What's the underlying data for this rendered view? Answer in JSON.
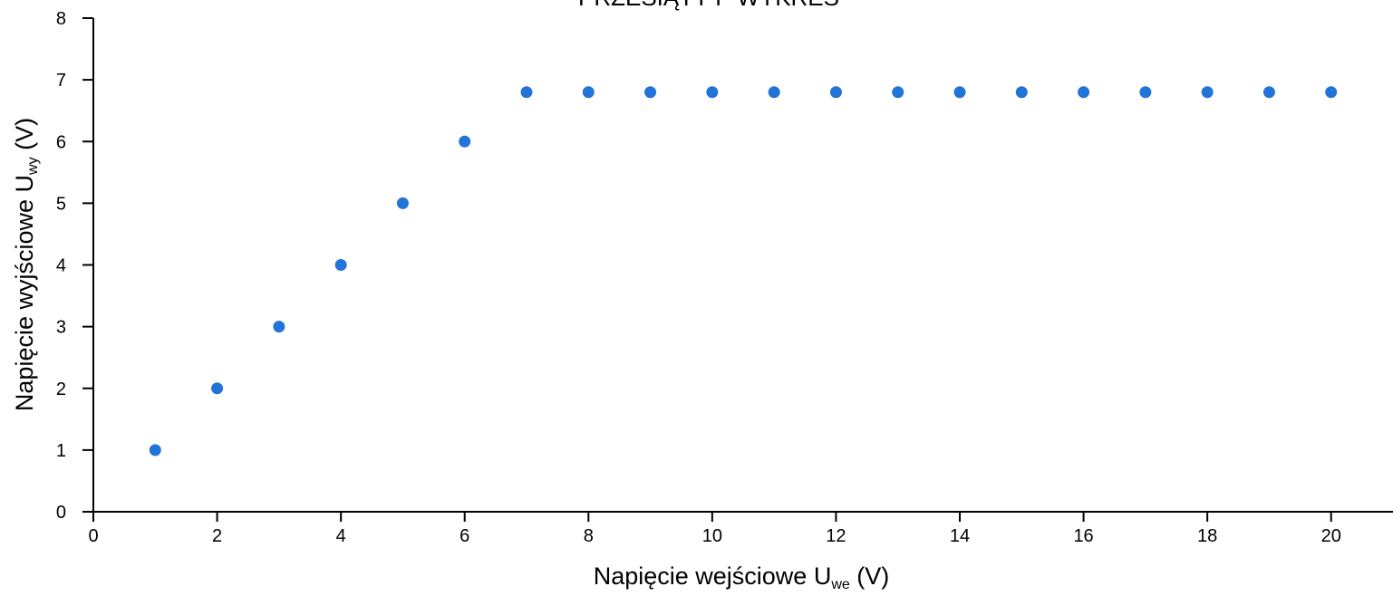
{
  "chart_data": {
    "type": "scatter",
    "title": "PRZESIĄTY P WYKRES",
    "xlabel": {
      "main": "Napięcie wejściowe U",
      "sub": "we",
      "unit": " (V)"
    },
    "ylabel": {
      "main": "Napięcie wyjściowe U",
      "sub": "wy",
      "unit": " (V)"
    },
    "xlim": [
      0,
      21
    ],
    "ylim": [
      0,
      8
    ],
    "xticks": [
      0,
      2,
      4,
      6,
      8,
      10,
      12,
      14,
      16,
      18,
      20
    ],
    "yticks": [
      0,
      1,
      2,
      3,
      4,
      5,
      6,
      7,
      8
    ],
    "grid": false,
    "point_color": "#2374d9",
    "series": [
      {
        "x": [
          1,
          2,
          3,
          4,
          5,
          6,
          7,
          8,
          9,
          10,
          11,
          12,
          13,
          14,
          15,
          16,
          17,
          18,
          19,
          20
        ],
        "y": [
          1,
          2,
          3,
          4,
          5,
          6,
          6.8,
          6.8,
          6.8,
          6.8,
          6.8,
          6.8,
          6.8,
          6.8,
          6.8,
          6.8,
          6.8,
          6.8,
          6.8,
          6.8
        ]
      }
    ]
  }
}
